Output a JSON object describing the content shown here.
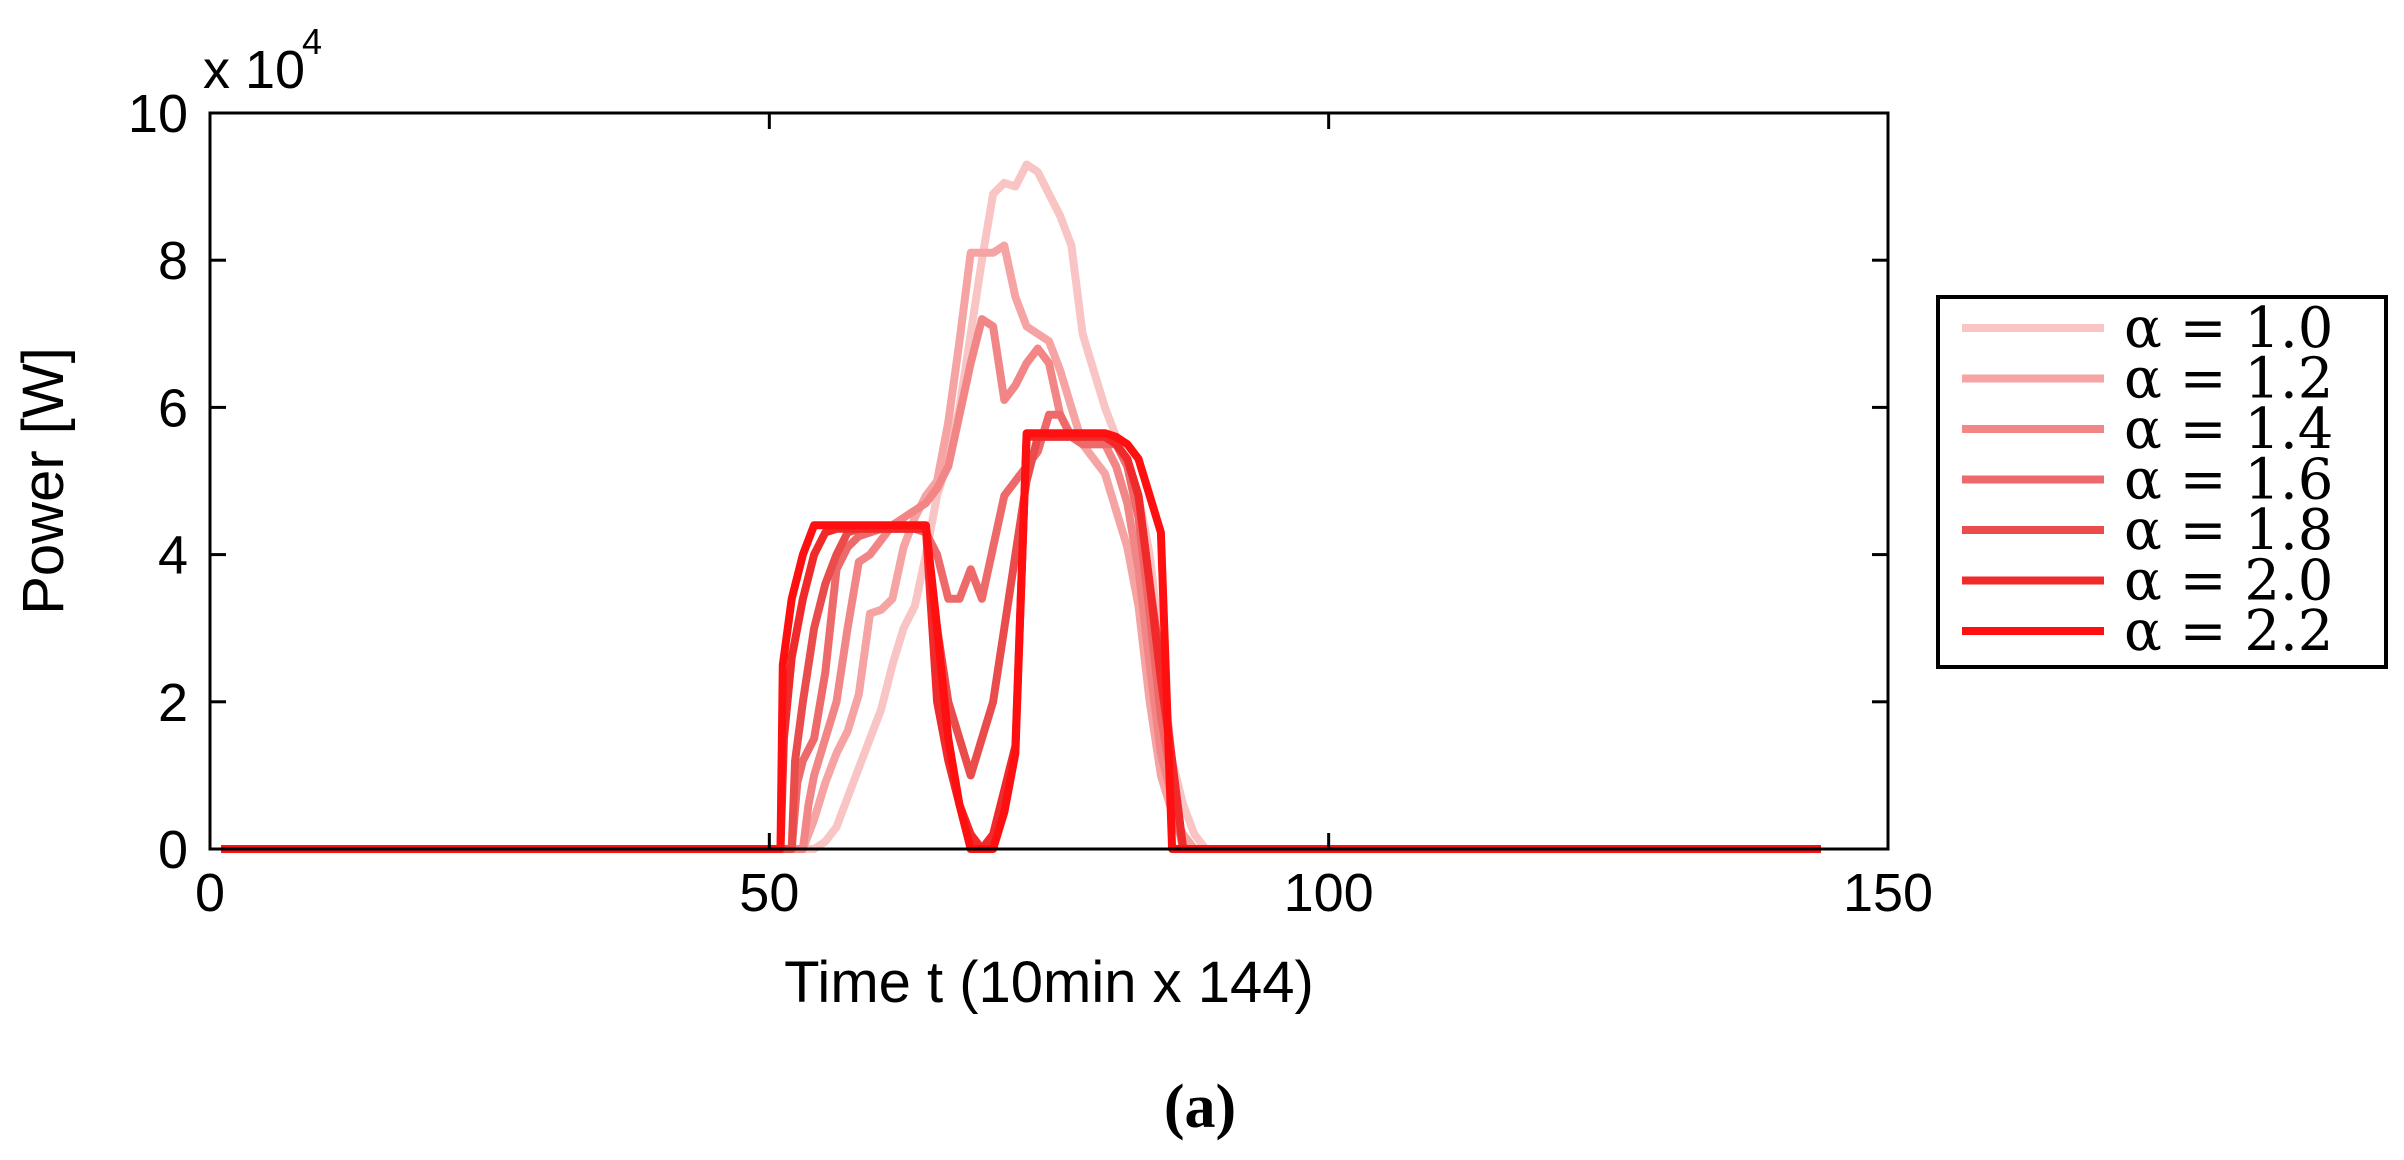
{
  "caption": "(a)",
  "chart_data": {
    "type": "line",
    "title": "",
    "xlabel": "Time t (10min x 144)",
    "ylabel": "Power [W]",
    "y_multiplier_label": "x 10",
    "y_multiplier_exponent": "4",
    "xlim": [
      0,
      150
    ],
    "ylim": [
      0,
      10
    ],
    "xticks": [
      0,
      50,
      100,
      150
    ],
    "yticks": [
      0,
      2,
      4,
      6,
      8,
      10
    ],
    "grid": false,
    "legend_position": "right",
    "series": [
      {
        "name": "α = 1.0",
        "color": "#f9c4c4",
        "points": [
          [
            1,
            0
          ],
          [
            54,
            0
          ],
          [
            55,
            0.1
          ],
          [
            56,
            0.3
          ],
          [
            57,
            0.7
          ],
          [
            58,
            1.1
          ],
          [
            59,
            1.5
          ],
          [
            60,
            1.9
          ],
          [
            61,
            2.5
          ],
          [
            62,
            3.0
          ],
          [
            63,
            3.3
          ],
          [
            64,
            4.0
          ],
          [
            65,
            4.8
          ],
          [
            66,
            5.3
          ],
          [
            67,
            6.0
          ],
          [
            68,
            7.0
          ],
          [
            69,
            8.0
          ],
          [
            70,
            8.9
          ],
          [
            71,
            9.05
          ],
          [
            72,
            9.0
          ],
          [
            73,
            9.3
          ],
          [
            74,
            9.2
          ],
          [
            75,
            8.9
          ],
          [
            76,
            8.6
          ],
          [
            77,
            8.2
          ],
          [
            78,
            7.0
          ],
          [
            79,
            6.5
          ],
          [
            80,
            6.0
          ],
          [
            81,
            5.6
          ],
          [
            82,
            5.2
          ],
          [
            83,
            4.8
          ],
          [
            84,
            4.0
          ],
          [
            85,
            2.7
          ],
          [
            86,
            1.2
          ],
          [
            87,
            0.6
          ],
          [
            88,
            0.2
          ],
          [
            89,
            0
          ],
          [
            144,
            0
          ]
        ]
      },
      {
        "name": "α = 1.2",
        "color": "#f5a3a3",
        "points": [
          [
            1,
            0
          ],
          [
            53,
            0
          ],
          [
            54,
            0.4
          ],
          [
            55,
            0.9
          ],
          [
            56,
            1.3
          ],
          [
            57,
            1.6
          ],
          [
            58,
            2.1
          ],
          [
            59,
            3.2
          ],
          [
            60,
            3.25
          ],
          [
            61,
            3.4
          ],
          [
            62,
            4.1
          ],
          [
            63,
            4.5
          ],
          [
            64,
            4.8
          ],
          [
            65,
            5.0
          ],
          [
            66,
            5.8
          ],
          [
            67,
            6.9
          ],
          [
            68,
            8.1
          ],
          [
            69,
            8.1
          ],
          [
            70,
            8.1
          ],
          [
            71,
            8.2
          ],
          [
            72,
            7.5
          ],
          [
            73,
            7.1
          ],
          [
            74,
            7.0
          ],
          [
            75,
            6.9
          ],
          [
            76,
            6.5
          ],
          [
            77,
            6.0
          ],
          [
            78,
            5.5
          ],
          [
            79,
            5.3
          ],
          [
            80,
            5.1
          ],
          [
            81,
            4.6
          ],
          [
            82,
            4.1
          ],
          [
            83,
            3.3
          ],
          [
            84,
            2.0
          ],
          [
            85,
            1.0
          ],
          [
            86,
            0.5
          ],
          [
            87,
            0.2
          ],
          [
            88,
            0
          ],
          [
            144,
            0
          ]
        ]
      },
      {
        "name": "α = 1.4",
        "color": "#f28686",
        "points": [
          [
            1,
            0
          ],
          [
            53,
            0
          ],
          [
            53.5,
            0.6
          ],
          [
            54,
            1.0
          ],
          [
            55,
            1.5
          ],
          [
            56,
            2.0
          ],
          [
            57,
            3.0
          ],
          [
            58,
            3.9
          ],
          [
            59,
            4.0
          ],
          [
            60,
            4.2
          ],
          [
            61,
            4.4
          ],
          [
            62,
            4.5
          ],
          [
            63,
            4.6
          ],
          [
            64,
            4.7
          ],
          [
            65,
            4.9
          ],
          [
            66,
            5.2
          ],
          [
            67,
            5.9
          ],
          [
            68,
            6.6
          ],
          [
            69,
            7.2
          ],
          [
            70,
            7.1
          ],
          [
            71,
            6.1
          ],
          [
            72,
            6.3
          ],
          [
            73,
            6.6
          ],
          [
            74,
            6.8
          ],
          [
            75,
            6.6
          ],
          [
            76,
            5.9
          ],
          [
            77,
            5.6
          ],
          [
            78,
            5.5
          ],
          [
            79,
            5.5
          ],
          [
            80,
            5.5
          ],
          [
            81,
            5.2
          ],
          [
            82,
            4.7
          ],
          [
            83,
            3.8
          ],
          [
            84,
            2.5
          ],
          [
            85,
            1.3
          ],
          [
            86,
            0.7
          ],
          [
            87,
            0
          ],
          [
            144,
            0
          ]
        ]
      },
      {
        "name": "α = 1.6",
        "color": "#ee6a6a",
        "points": [
          [
            1,
            0
          ],
          [
            52,
            0
          ],
          [
            52.5,
            0.9
          ],
          [
            53,
            1.2
          ],
          [
            54,
            1.5
          ],
          [
            55,
            2.4
          ],
          [
            56,
            3.8
          ],
          [
            57,
            4.1
          ],
          [
            58,
            4.25
          ],
          [
            59,
            4.3
          ],
          [
            60,
            4.35
          ],
          [
            61,
            4.35
          ],
          [
            62,
            4.35
          ],
          [
            63,
            4.35
          ],
          [
            64,
            4.3
          ],
          [
            65,
            4.0
          ],
          [
            66,
            3.4
          ],
          [
            67,
            3.4
          ],
          [
            68,
            3.8
          ],
          [
            69,
            3.4
          ],
          [
            70,
            4.1
          ],
          [
            71,
            4.8
          ],
          [
            72,
            5.0
          ],
          [
            73,
            5.2
          ],
          [
            74,
            5.4
          ],
          [
            75,
            5.9
          ],
          [
            76,
            5.9
          ],
          [
            77,
            5.6
          ],
          [
            78,
            5.5
          ],
          [
            79,
            5.5
          ],
          [
            80,
            5.5
          ],
          [
            81,
            5.5
          ],
          [
            82,
            5.2
          ],
          [
            83,
            4.5
          ],
          [
            84,
            3.2
          ],
          [
            85,
            1.8
          ],
          [
            86,
            0.9
          ],
          [
            87,
            0
          ],
          [
            144,
            0
          ]
        ]
      },
      {
        "name": "α = 1.8",
        "color": "#ea4c4c",
        "points": [
          [
            1,
            0
          ],
          [
            52,
            0
          ],
          [
            52.3,
            1.2
          ],
          [
            53,
            2.0
          ],
          [
            54,
            3.0
          ],
          [
            55,
            3.6
          ],
          [
            56,
            4.0
          ],
          [
            57,
            4.3
          ],
          [
            58,
            4.35
          ],
          [
            59,
            4.35
          ],
          [
            60,
            4.35
          ],
          [
            61,
            4.35
          ],
          [
            62,
            4.35
          ],
          [
            63,
            4.35
          ],
          [
            64,
            4.35
          ],
          [
            65,
            3.0
          ],
          [
            66,
            2.0
          ],
          [
            67,
            1.5
          ],
          [
            68,
            1.0
          ],
          [
            69,
            1.5
          ],
          [
            70,
            2.0
          ],
          [
            71,
            3.0
          ],
          [
            72,
            4.0
          ],
          [
            73,
            5.0
          ],
          [
            74,
            5.6
          ],
          [
            75,
            5.6
          ],
          [
            76,
            5.6
          ],
          [
            77,
            5.6
          ],
          [
            78,
            5.6
          ],
          [
            79,
            5.6
          ],
          [
            80,
            5.6
          ],
          [
            81,
            5.5
          ],
          [
            82,
            5.3
          ],
          [
            83,
            4.8
          ],
          [
            84,
            3.6
          ],
          [
            85,
            2.5
          ],
          [
            86,
            1.2
          ],
          [
            87,
            0
          ],
          [
            144,
            0
          ]
        ]
      },
      {
        "name": "α = 2.0",
        "color": "#f02a2a",
        "points": [
          [
            1,
            0
          ],
          [
            51,
            0
          ],
          [
            51.3,
            1.5
          ],
          [
            52,
            2.6
          ],
          [
            53,
            3.4
          ],
          [
            54,
            4.0
          ],
          [
            55,
            4.3
          ],
          [
            56,
            4.35
          ],
          [
            57,
            4.35
          ],
          [
            58,
            4.35
          ],
          [
            59,
            4.35
          ],
          [
            60,
            4.35
          ],
          [
            61,
            4.35
          ],
          [
            62,
            4.35
          ],
          [
            63,
            4.35
          ],
          [
            64,
            4.35
          ],
          [
            65,
            2.0
          ],
          [
            66,
            1.2
          ],
          [
            67,
            0.6
          ],
          [
            68,
            0.2
          ],
          [
            69,
            0
          ],
          [
            70,
            0.2
          ],
          [
            71,
            0.8
          ],
          [
            72,
            1.4
          ],
          [
            73,
            5.6
          ],
          [
            74,
            5.6
          ],
          [
            75,
            5.6
          ],
          [
            76,
            5.6
          ],
          [
            77,
            5.6
          ],
          [
            78,
            5.6
          ],
          [
            79,
            5.6
          ],
          [
            80,
            5.6
          ],
          [
            81,
            5.5
          ],
          [
            82,
            5.3
          ],
          [
            83,
            4.8
          ],
          [
            84,
            3.6
          ],
          [
            85,
            2.3
          ],
          [
            86,
            1.2
          ],
          [
            87,
            0
          ],
          [
            144,
            0
          ]
        ]
      },
      {
        "name": "α = 2.2",
        "color": "#ff0f0f",
        "points": [
          [
            1,
            0
          ],
          [
            51,
            0
          ],
          [
            51.2,
            2.5
          ],
          [
            52,
            3.4
          ],
          [
            53,
            4.0
          ],
          [
            54,
            4.4
          ],
          [
            55,
            4.4
          ],
          [
            56,
            4.4
          ],
          [
            57,
            4.4
          ],
          [
            58,
            4.4
          ],
          [
            59,
            4.4
          ],
          [
            60,
            4.4
          ],
          [
            61,
            4.4
          ],
          [
            62,
            4.4
          ],
          [
            63,
            4.4
          ],
          [
            64,
            4.4
          ],
          [
            65,
            3.0
          ],
          [
            66,
            1.5
          ],
          [
            67,
            0.6
          ],
          [
            68,
            0
          ],
          [
            69,
            0
          ],
          [
            70,
            0
          ],
          [
            71,
            0.5
          ],
          [
            72,
            1.3
          ],
          [
            73,
            5.65
          ],
          [
            74,
            5.65
          ],
          [
            75,
            5.65
          ],
          [
            76,
            5.65
          ],
          [
            77,
            5.65
          ],
          [
            78,
            5.65
          ],
          [
            79,
            5.65
          ],
          [
            80,
            5.65
          ],
          [
            81,
            5.6
          ],
          [
            82,
            5.5
          ],
          [
            83,
            5.3
          ],
          [
            84,
            4.8
          ],
          [
            85,
            4.3
          ],
          [
            86,
            0
          ],
          [
            144,
            0
          ]
        ]
      }
    ]
  }
}
